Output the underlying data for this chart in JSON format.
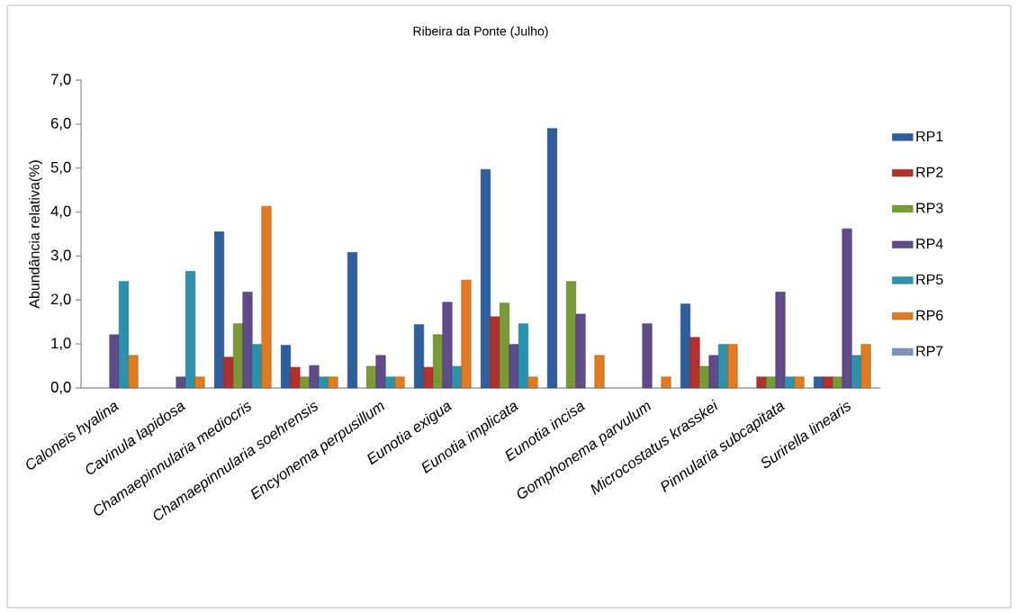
{
  "chart_data": {
    "type": "bar",
    "title": "Ribeira da Ponte (Julho)",
    "ylabel": "Abundância relativa(%)",
    "categories": [
      "Caloneis hyalina",
      "Cavinula lapidosa",
      "Chamaepinnularia mediocris",
      "Chamaepinnularia soehrensis",
      "Encyonema perpusillum",
      "Eunotia exigua",
      "Eunotia implicata",
      "Eunotia incisa",
      "Gomphonema parvulum",
      "Microcostatus krasskei",
      "Pinnularia subcapitata",
      "Surirella linearis"
    ],
    "series": [
      {
        "name": "RP1",
        "color": "#2e5f9c",
        "values": [
          null,
          null,
          3.55,
          0.97,
          3.08,
          1.44,
          4.97,
          5.9,
          null,
          1.91,
          null,
          0.25
        ]
      },
      {
        "name": "RP2",
        "color": "#b3302e",
        "values": [
          null,
          null,
          0.7,
          0.47,
          null,
          0.47,
          1.62,
          null,
          null,
          1.15,
          0.25,
          0.25
        ]
      },
      {
        "name": "RP3",
        "color": "#7a9a35",
        "values": [
          null,
          null,
          1.46,
          0.25,
          0.49,
          1.21,
          1.93,
          2.42,
          null,
          0.49,
          0.25,
          0.25
        ]
      },
      {
        "name": "RP4",
        "color": "#5f4a8a",
        "values": [
          1.21,
          0.25,
          2.18,
          0.51,
          0.74,
          1.95,
          0.99,
          1.68,
          1.46,
          0.74,
          2.18,
          3.62
        ]
      },
      {
        "name": "RP5",
        "color": "#2a93ab",
        "values": [
          2.42,
          2.65,
          0.99,
          0.25,
          0.25,
          0.49,
          1.46,
          null,
          null,
          0.99,
          0.25,
          0.74
        ]
      },
      {
        "name": "RP6",
        "color": "#e07b20",
        "values": [
          0.74,
          0.25,
          4.13,
          0.25,
          0.25,
          2.45,
          0.25,
          0.74,
          0.25,
          0.99,
          0.25,
          0.99
        ]
      },
      {
        "name": "RP7",
        "color": "#7f93bd",
        "values": [
          null,
          null,
          null,
          null,
          null,
          null,
          null,
          null,
          null,
          null,
          null,
          null
        ]
      }
    ],
    "ylim": [
      0,
      7
    ],
    "yticks": [
      {
        "value": 0,
        "label": "0,0"
      },
      {
        "value": 1,
        "label": "1,0"
      },
      {
        "value": 2,
        "label": "2,0"
      },
      {
        "value": 3,
        "label": "3,0"
      },
      {
        "value": 4,
        "label": "4,0"
      },
      {
        "value": 5,
        "label": "5,0"
      },
      {
        "value": 6,
        "label": "6,0"
      },
      {
        "value": 7,
        "label": "7,0"
      }
    ],
    "legend": "right",
    "grid": false
  }
}
